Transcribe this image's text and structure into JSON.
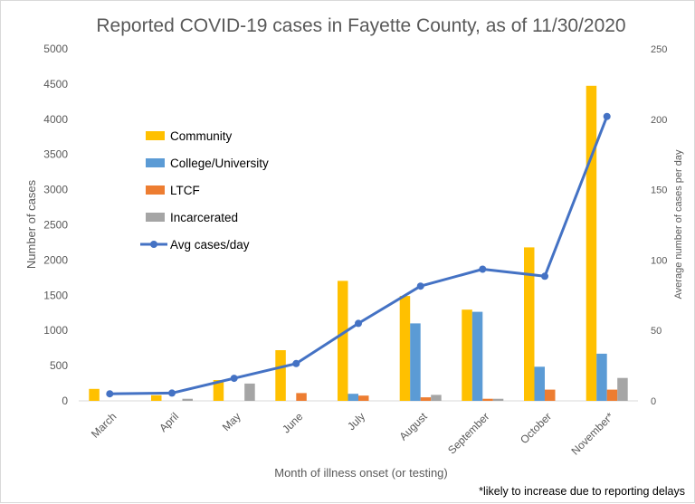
{
  "chart_data": {
    "type": "bar",
    "title": "Reported COVID-19 cases in Fayette County, as of 11/30/2020",
    "xlabel": "Month of illness onset (or testing)",
    "ylabel": "Number of cases",
    "y2label": "Average number of cases per day",
    "footnote": "*likely to increase due to reporting delays",
    "categories": [
      "March",
      "April",
      "May",
      "June",
      "July",
      "August",
      "September",
      "October",
      "November*"
    ],
    "ylim": [
      0,
      5000
    ],
    "yticks": [
      0,
      500,
      1000,
      1500,
      2000,
      2500,
      3000,
      3500,
      4000,
      4500,
      5000
    ],
    "y2lim": [
      0,
      250
    ],
    "y2ticks": [
      0,
      50,
      100,
      150,
      200,
      250
    ],
    "grid": false,
    "legend_position": "upper-left",
    "series": [
      {
        "name": "Community",
        "type": "bar",
        "axis": "left",
        "color": "#FFC000",
        "values": [
          170,
          80,
          295,
          720,
          1705,
          1490,
          1295,
          2180,
          4475
        ]
      },
      {
        "name": "College/University",
        "type": "bar",
        "axis": "left",
        "color": "#5B9BD5",
        "values": [
          0,
          0,
          0,
          0,
          100,
          1100,
          1265,
          485,
          670
        ]
      },
      {
        "name": "LTCF",
        "type": "bar",
        "axis": "left",
        "color": "#ED7D31",
        "values": [
          0,
          0,
          0,
          110,
          75,
          50,
          30,
          160,
          160
        ]
      },
      {
        "name": "Incarcerated",
        "type": "bar",
        "axis": "left",
        "color": "#A5A5A5",
        "values": [
          0,
          30,
          245,
          0,
          0,
          85,
          30,
          0,
          325
        ]
      },
      {
        "name": "Avg cases/day",
        "type": "line",
        "axis": "right",
        "color": "#4472C4",
        "values": [
          5,
          5.5,
          16,
          26.5,
          55,
          81.5,
          93.5,
          88.5,
          202
        ]
      }
    ]
  }
}
